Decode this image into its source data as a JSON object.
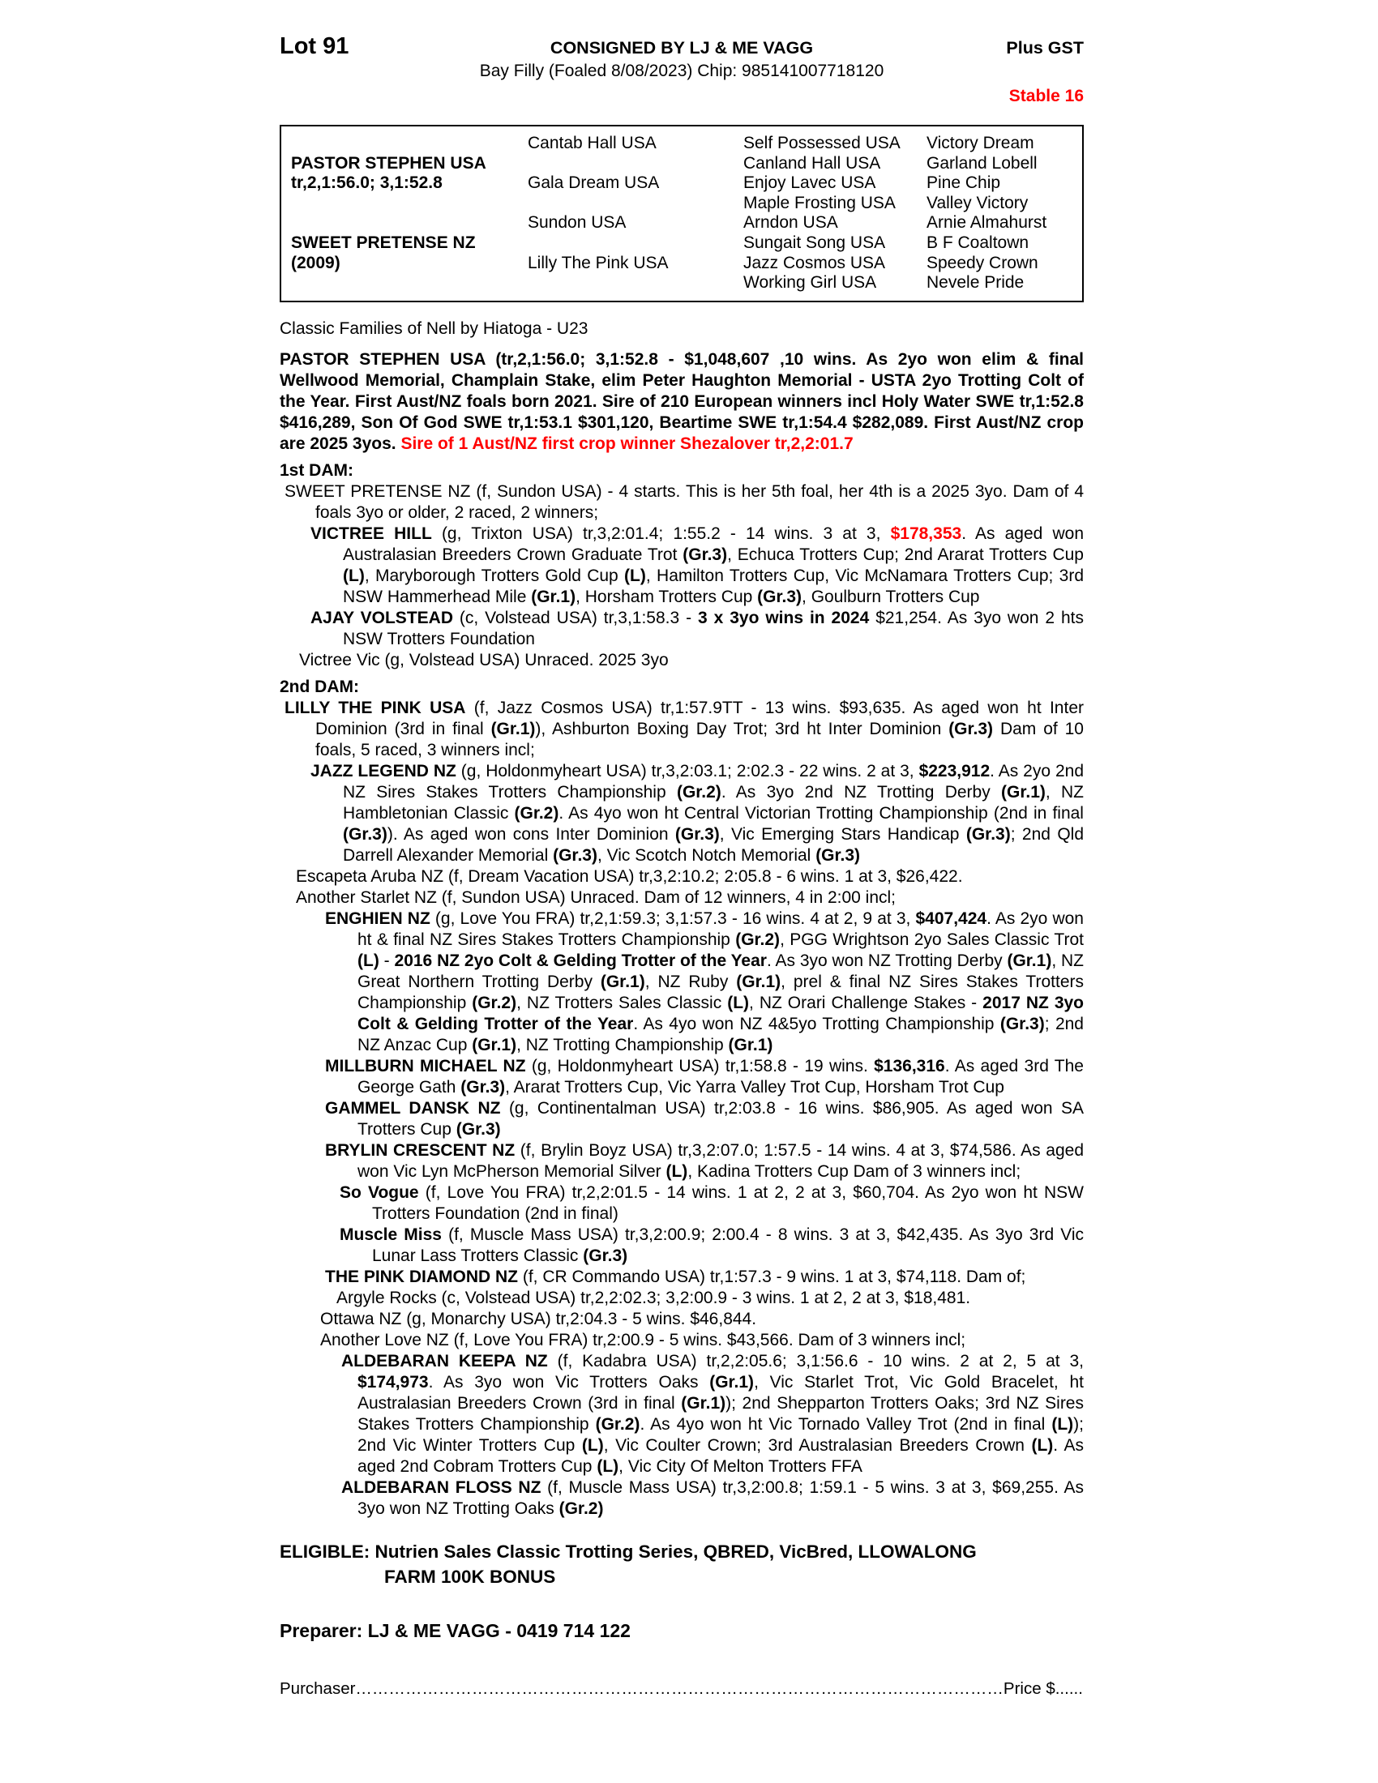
{
  "colors": {
    "red": "#ff0000"
  },
  "header": {
    "lot": "Lot 91",
    "consignor": "CONSIGNED BY LJ & ME VAGG",
    "gst": "Plus GST",
    "foal_info": "Bay Filly (Foaled 8/08/2023) Chip: 985141007718120",
    "stable": "Stable 16"
  },
  "pedigree": {
    "rows": [
      [
        "",
        "Cantab Hall USA",
        "Self Possessed USA",
        "Victory Dream"
      ],
      [
        "PASTOR STEPHEN USA",
        "",
        "Canland Hall USA",
        "Garland Lobell"
      ],
      [
        "tr,2,1:56.0; 3,1:52.8",
        "Gala Dream USA",
        "Enjoy Lavec USA",
        "Pine Chip"
      ],
      [
        "",
        "",
        "Maple Frosting USA",
        "Valley Victory"
      ],
      [
        "",
        "Sundon USA",
        "Arndon USA",
        "Arnie Almahurst"
      ],
      [
        "SWEET PRETENSE NZ",
        "",
        "Sungait Song USA",
        "B F Coaltown"
      ],
      [
        "(2009)",
        "Lilly The Pink USA",
        "Jazz Cosmos USA",
        "Speedy Crown"
      ],
      [
        "",
        "",
        "Working Girl USA",
        "Nevele Pride"
      ]
    ]
  },
  "family_line": "Classic Families of Nell by Hiatoga - U23",
  "sire_paragraph": [
    {
      "t": "PASTOR STEPHEN USA (tr,2,1:56.0; 3,1:52.8 - $1,048,607 ,10 wins. As 2yo won elim & final Wellwood Memorial, Champlain Stake, elim Peter Haughton Memorial - USTA 2yo Trotting Colt of the Year. First Aust/NZ foals born 2021. Sire of 210 European winners incl Holy Water SWE tr,1:52.8 $416,289, Son Of God SWE tr,1:53.1 $301,120, Beartime SWE tr,1:54.4 $282,089. First Aust/NZ crop are 2025 3yos. ",
      "b": true
    },
    {
      "t": "Sire of 1 Aust/NZ first crop winner Shezalover tr,2,2:01.7",
      "b": true,
      "r": true
    }
  ],
  "dam1": {
    "heading": "1st DAM:",
    "entries": [
      [
        {
          "t": "SWEET PRETENSE NZ (f, Sundon USA) - 4 starts. This is her 5th foal, her 4th is a 2025 3yo. Dam of 4 foals 3yo or older, 2 raced, 2 winners;"
        }
      ],
      [
        {
          "t": "VICTREE HILL",
          "b": true
        },
        {
          "t": " (g, Trixton USA) tr,3,2:01.4; 1:55.2 - 14 wins. 3 at 3, "
        },
        {
          "t": "$178,353",
          "b": true,
          "r": true
        },
        {
          "t": ". As aged won Australasian Breeders Crown Graduate Trot "
        },
        {
          "t": "(Gr.3)",
          "b": true
        },
        {
          "t": ", Echuca Trotters Cup; 2nd Ararat Trotters Cup "
        },
        {
          "t": "(L)",
          "b": true
        },
        {
          "t": ", Maryborough Trotters Gold Cup "
        },
        {
          "t": "(L)",
          "b": true
        },
        {
          "t": ", Hamilton Trotters Cup, Vic McNamara Trotters Cup; 3rd NSW Hammerhead Mile "
        },
        {
          "t": "(Gr.1)",
          "b": true
        },
        {
          "t": ", Horsham Trotters Cup "
        },
        {
          "t": "(Gr.3)",
          "b": true
        },
        {
          "t": ", Goulburn Trotters Cup"
        }
      ],
      [
        {
          "t": "AJAY VOLSTEAD",
          "b": true
        },
        {
          "t": " (c, Volstead USA) tr,3,1:58.3 - "
        },
        {
          "t": "3 x 3yo wins in 2024",
          "b": true
        },
        {
          "t": " $21,254. As 3yo won 2 hts NSW Trotters Foundation"
        }
      ],
      [
        {
          "t": "Victree Vic (g, Volstead USA) Unraced. 2025 3yo"
        }
      ]
    ]
  },
  "dam2": {
    "heading": "2nd DAM:",
    "entries": [
      [
        {
          "t": "LILLY THE PINK USA",
          "b": true
        },
        {
          "t": " (f, Jazz Cosmos USA) tr,1:57.9TT - 13 wins. $93,635. As aged won ht Inter Dominion (3rd in final "
        },
        {
          "t": "(Gr.1)",
          "b": true
        },
        {
          "t": "), Ashburton Boxing Day Trot; 3rd ht Inter Dominion "
        },
        {
          "t": "(Gr.3)",
          "b": true
        },
        {
          "t": " Dam of 10 foals, 5 raced, 3 winners incl;"
        }
      ],
      [
        {
          "t": "JAZZ LEGEND NZ",
          "b": true
        },
        {
          "t": " (g, Holdonmyheart USA) tr,3,2:03.1; 2:02.3 - 22 wins. 2 at 3, "
        },
        {
          "t": "$223,912",
          "b": true
        },
        {
          "t": ". As 2yo 2nd NZ Sires Stakes Trotters Championship "
        },
        {
          "t": "(Gr.2)",
          "b": true
        },
        {
          "t": ". As 3yo 2nd NZ Trotting Derby "
        },
        {
          "t": "(Gr.1)",
          "b": true
        },
        {
          "t": ", NZ Hambletonian Classic "
        },
        {
          "t": "(Gr.2)",
          "b": true
        },
        {
          "t": ". As 4yo won ht Central Victorian Trotting Championship (2nd in final "
        },
        {
          "t": "(Gr.3)",
          "b": true
        },
        {
          "t": "). As aged won cons Inter Dominion "
        },
        {
          "t": "(Gr.3)",
          "b": true
        },
        {
          "t": ", Vic Emerging Stars Handicap "
        },
        {
          "t": "(Gr.3)",
          "b": true
        },
        {
          "t": "; 2nd Qld Darrell Alexander Memorial "
        },
        {
          "t": "(Gr.3)",
          "b": true
        },
        {
          "t": ", Vic Scotch Notch Memorial "
        },
        {
          "t": "(Gr.3)",
          "b": true
        }
      ],
      [
        {
          "t": "Escapeta Aruba NZ (f, Dream Vacation USA) tr,3,2:10.2; 2:05.8 - 6 wins. 1 at 3, $26,422."
        }
      ],
      [
        {
          "t": "Another Starlet NZ (f, Sundon USA) Unraced. Dam of 12 winners, 4 in 2:00 incl;"
        }
      ],
      [
        {
          "t": "ENGHIEN NZ",
          "b": true
        },
        {
          "t": " (g, Love You FRA) tr,2,1:59.3; 3,1:57.3 - 16 wins. 4 at 2, 9 at 3, "
        },
        {
          "t": "$407,424",
          "b": true
        },
        {
          "t": ". As 2yo won ht & final NZ Sires Stakes Trotters Championship "
        },
        {
          "t": "(Gr.2)",
          "b": true
        },
        {
          "t": ", PGG Wrightson 2yo Sales Classic Trot "
        },
        {
          "t": "(L)",
          "b": true
        },
        {
          "t": " - "
        },
        {
          "t": "2016 NZ 2yo Colt & Gelding Trotter of the Year",
          "b": true
        },
        {
          "t": ". As 3yo won NZ Trotting Derby "
        },
        {
          "t": "(Gr.1)",
          "b": true
        },
        {
          "t": ", NZ Great Northern Trotting Derby "
        },
        {
          "t": "(Gr.1)",
          "b": true
        },
        {
          "t": ", NZ Ruby "
        },
        {
          "t": "(Gr.1)",
          "b": true
        },
        {
          "t": ", prel & final NZ Sires Stakes Trotters Championship "
        },
        {
          "t": "(Gr.2)",
          "b": true
        },
        {
          "t": ", NZ Trotters Sales Classic "
        },
        {
          "t": "(L)",
          "b": true
        },
        {
          "t": ", NZ Orari Challenge Stakes - "
        },
        {
          "t": "2017 NZ 3yo Colt & Gelding Trotter of the Year",
          "b": true
        },
        {
          "t": ". As 4yo won NZ 4&5yo Trotting Championship "
        },
        {
          "t": "(Gr.3)",
          "b": true
        },
        {
          "t": "; 2nd NZ Anzac Cup "
        },
        {
          "t": "(Gr.1)",
          "b": true
        },
        {
          "t": ", NZ Trotting Championship "
        },
        {
          "t": "(Gr.1)",
          "b": true
        }
      ],
      [
        {
          "t": "MILLBURN MICHAEL NZ",
          "b": true
        },
        {
          "t": " (g, Holdonmyheart USA) tr,1:58.8 - 19 wins. "
        },
        {
          "t": "$136,316",
          "b": true
        },
        {
          "t": ". As aged 3rd The George Gath "
        },
        {
          "t": "(Gr.3)",
          "b": true
        },
        {
          "t": ", Ararat Trotters Cup, Vic Yarra Valley Trot Cup, Horsham Trot Cup"
        }
      ],
      [
        {
          "t": "GAMMEL DANSK NZ",
          "b": true
        },
        {
          "t": " (g, Continentalman USA) tr,2:03.8 - 16 wins. $86,905. As aged won SA Trotters Cup "
        },
        {
          "t": "(Gr.3)",
          "b": true
        }
      ],
      [
        {
          "t": "BRYLIN CRESCENT NZ",
          "b": true
        },
        {
          "t": " (f, Brylin Boyz USA) tr,3,2:07.0; 1:57.5 - 14 wins. 4 at 3, $74,586. As aged won Vic Lyn McPherson Memorial Silver "
        },
        {
          "t": "(L)",
          "b": true
        },
        {
          "t": ", Kadina Trotters Cup Dam of 3 winners incl;"
        }
      ],
      [
        {
          "t": "So Vogue",
          "b": true
        },
        {
          "t": " (f, Love You FRA) tr,2,2:01.5 - 14 wins. 1 at 2, 2 at 3, $60,704. As 2yo won ht NSW Trotters Foundation (2nd in final)"
        }
      ],
      [
        {
          "t": "Muscle Miss",
          "b": true
        },
        {
          "t": " (f, Muscle Mass USA) tr,3,2:00.9; 2:00.4 - 8 wins. 3 at 3, $42,435. As 3yo 3rd Vic Lunar Lass Trotters Classic "
        },
        {
          "t": "(Gr.3)",
          "b": true
        }
      ],
      [
        {
          "t": "THE PINK DIAMOND NZ",
          "b": true
        },
        {
          "t": " (f, CR Commando USA) tr,1:57.3 - 9 wins. 1 at 3, $74,118. Dam of;"
        }
      ],
      [
        {
          "t": "Argyle Rocks (c, Volstead USA) tr,2,2:02.3; 3,2:00.9 - 3 wins. 1 at 2, 2 at 3, $18,481."
        }
      ],
      [
        {
          "t": "Ottawa NZ (g, Monarchy USA) tr,2:04.3 - 5 wins. $46,844."
        }
      ],
      [
        {
          "t": "Another Love NZ (f, Love You FRA) tr,2:00.9 - 5 wins. $43,566. Dam of 3 winners incl;"
        }
      ],
      [
        {
          "t": "ALDEBARAN KEEPA NZ",
          "b": true
        },
        {
          "t": " (f, Kadabra USA) tr,2,2:05.6; 3,1:56.6 - 10 wins. 2 at 2, 5 at 3, "
        },
        {
          "t": "$174,973",
          "b": true
        },
        {
          "t": ". As 3yo won Vic Trotters Oaks "
        },
        {
          "t": "(Gr.1)",
          "b": true
        },
        {
          "t": ", Vic Starlet Trot, Vic Gold Bracelet, ht Australasian Breeders Crown (3rd in final "
        },
        {
          "t": "(Gr.1)",
          "b": true
        },
        {
          "t": "); 2nd Shepparton Trotters Oaks; 3rd NZ Sires Stakes Trotters Championship "
        },
        {
          "t": "(Gr.2)",
          "b": true
        },
        {
          "t": ". As 4yo won ht Vic Tornado Valley Trot (2nd in final "
        },
        {
          "t": "(L)",
          "b": true
        },
        {
          "t": "); 2nd Vic Winter Trotters Cup "
        },
        {
          "t": "(L)",
          "b": true
        },
        {
          "t": ", Vic Coulter Crown; 3rd Australasian Breeders Crown "
        },
        {
          "t": "(L)",
          "b": true
        },
        {
          "t": ". As aged 2nd Cobram Trotters Cup "
        },
        {
          "t": "(L)",
          "b": true
        },
        {
          "t": ", Vic City Of Melton Trotters FFA"
        }
      ],
      [
        {
          "t": "ALDEBARAN FLOSS NZ",
          "b": true
        },
        {
          "t": " (f, Muscle Mass USA) tr,3,2:00.8; 1:59.1 - 5 wins. 3 at 3, $69,255. As 3yo won NZ Trotting Oaks "
        },
        {
          "t": "(Gr.2)",
          "b": true
        }
      ]
    ]
  },
  "eligible": {
    "line1": "ELIGIBLE: Nutrien Sales Classic Trotting Series, QBRED, VicBred, LLOWALONG",
    "line2": "FARM 100K BONUS"
  },
  "preparer_line": "Preparer: LJ & ME VAGG - 0419 714 122",
  "purchaser_line": "Purchaser………………………………………………………………………………………………………Price $..........................................………………"
}
